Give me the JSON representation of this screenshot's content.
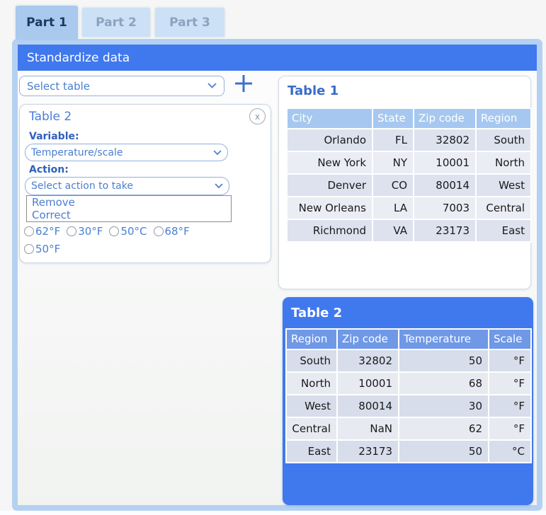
{
  "tabs": [
    {
      "label": "Part 1",
      "active": true
    },
    {
      "label": "Part 2",
      "active": false
    },
    {
      "label": "Part 3",
      "active": false
    }
  ],
  "panel": {
    "header": "Standardize data",
    "table_select_value": "Select table"
  },
  "card": {
    "title": "Table 2",
    "close_glyph": "x",
    "variable_label": "Variable:",
    "variable_value": "Temperature/scale",
    "action_label": "Action:",
    "action_value": "Select action to take",
    "action_options": [
      "Remove",
      "Correct"
    ],
    "radio_options": [
      "62°F",
      "30°F",
      "50°C",
      "68°F",
      "50°F"
    ]
  },
  "table1": {
    "title": "Table 1",
    "headers": [
      "City",
      "State",
      "Zip code",
      "Region"
    ],
    "rows": [
      [
        "Orlando",
        "FL",
        "32802",
        "South"
      ],
      [
        "New York",
        "NY",
        "10001",
        "North"
      ],
      [
        "Denver",
        "CO",
        "80014",
        "West"
      ],
      [
        "New Orleans",
        "LA",
        "7003",
        "Central"
      ],
      [
        "Richmond",
        "VA",
        "23173",
        "East"
      ]
    ]
  },
  "table2": {
    "title": "Table 2",
    "headers": [
      "Region",
      "Zip code",
      "Temperature",
      "Scale"
    ],
    "rows": [
      [
        "South",
        "32802",
        "50",
        "°F"
      ],
      [
        "North",
        "10001",
        "68",
        "°F"
      ],
      [
        "West",
        "80014",
        "30",
        "°F"
      ],
      [
        "Central",
        "NaN",
        "62",
        "°F"
      ],
      [
        "East",
        "23173",
        "50",
        "°C"
      ]
    ]
  },
  "colors": {
    "accent_blue": "#4078ee",
    "tab_active_bg": "#a9c9ed",
    "tab_inactive_bg": "#cce0f6",
    "panel_border": "#b5d1f1",
    "table1_header_bg": "#a6c8f0",
    "table2_header_bg": "#6f98e7",
    "row_dark": "#dde2ee",
    "row_light": "#ebedf4",
    "link_blue": "#4a7fd0"
  }
}
